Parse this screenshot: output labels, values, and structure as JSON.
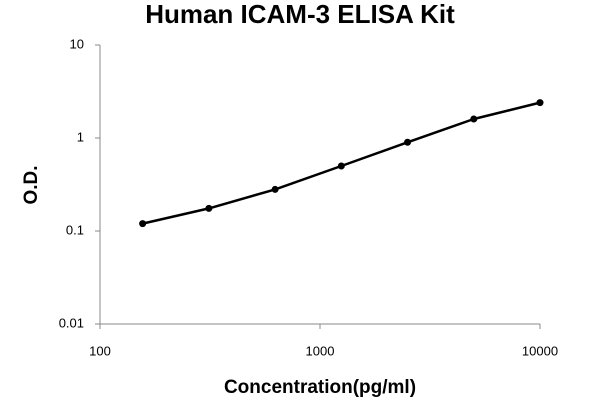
{
  "chart_data": {
    "type": "scatter",
    "title": "Human ICAM-3 ELISA Kit",
    "x_label": "Concentration(pg/ml)",
    "y_label": "O.D.",
    "x_scale": "log",
    "y_scale": "log",
    "x": [
      156.25,
      312.5,
      625,
      1250,
      2500,
      5000,
      10000
    ],
    "series": [
      {
        "color": "#000000",
        "values": [
          0.12,
          0.175,
          0.28,
          0.5,
          0.9,
          1.6,
          2.4
        ]
      }
    ],
    "xlim": [
      100,
      10000
    ],
    "xticks": [
      100,
      1000,
      10000
    ],
    "ylim": [
      0.01,
      10
    ],
    "yticks": [
      0.01,
      0.1,
      1,
      10
    ],
    "grid": false,
    "fit_line": true
  }
}
